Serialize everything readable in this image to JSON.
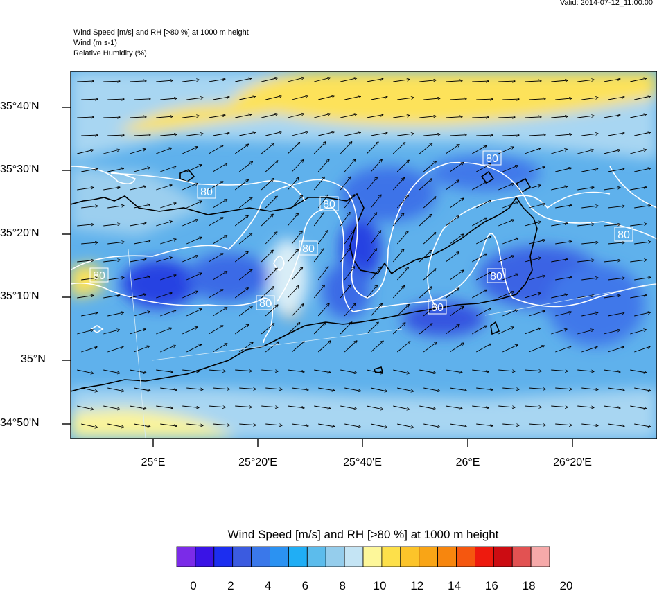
{
  "header": {
    "valid": "Valid: 2014-07-12_11:00:00",
    "line1": "Wind Speed [m/s] and RH [>80 %] at 1000 m height",
    "line2": "Wind   (m s-1)",
    "line3": "Relative Humidity   (%)"
  },
  "axes": {
    "lat_labels": [
      "35°40'N",
      "35°30'N",
      "35°20'N",
      "35°10'N",
      "35°N",
      "34°50'N"
    ],
    "lon_labels": [
      "25°E",
      "25°20'E",
      "25°40'E",
      "26°E",
      "26°20'E"
    ]
  },
  "contour_labels": [
    "80",
    "80",
    "80",
    "80",
    "80",
    "80",
    "80",
    "80",
    "80"
  ],
  "colorbar": {
    "title": "Wind Speed [m/s] and RH [>80 %] at 1000 m height",
    "ticks": [
      "0",
      "2",
      "4",
      "6",
      "8",
      "10",
      "12",
      "14",
      "16",
      "18",
      "20"
    ],
    "colors": [
      "#7b2be8",
      "#3a13e6",
      "#1c2ef0",
      "#3b5be0",
      "#3a78ea",
      "#2b92f2",
      "#20aef5",
      "#5cbcec",
      "#95cdec",
      "#c4e4f4",
      "#fdf79a",
      "#fde04a",
      "#fcc42a",
      "#f9a516",
      "#f7860e",
      "#f5570f",
      "#ee1a0e",
      "#cc0c12",
      "#e25252",
      "#f6a9a9"
    ]
  }
}
